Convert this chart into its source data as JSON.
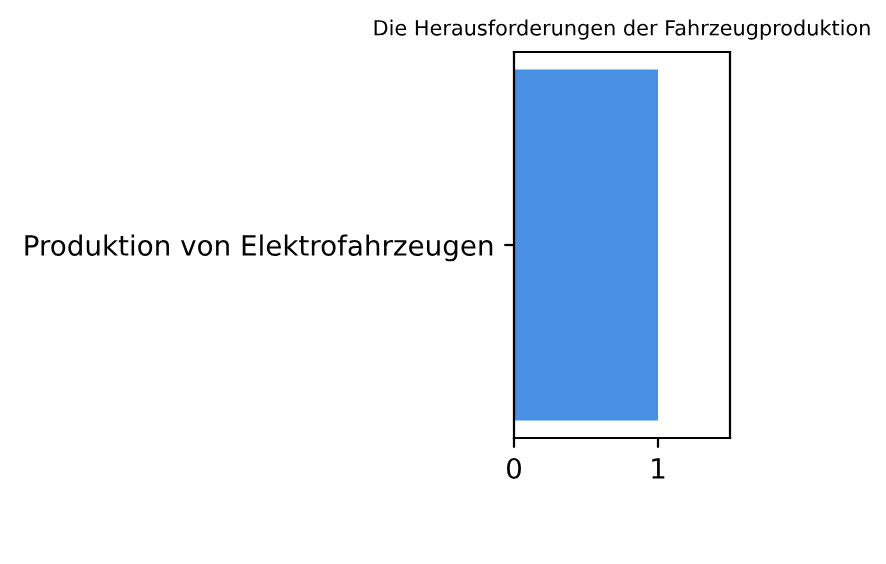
{
  "chart_data": {
    "type": "bar",
    "orientation": "horizontal",
    "title": "Die Herausforderungen der Fahrzeugproduktion",
    "categories": [
      "Produktion von Elektrofahrzeugen"
    ],
    "values": [
      1
    ],
    "color": "#4a90e2",
    "xlim": [
      0,
      1.5
    ],
    "xticks": [
      0,
      1
    ],
    "grid": false,
    "legend": false
  }
}
